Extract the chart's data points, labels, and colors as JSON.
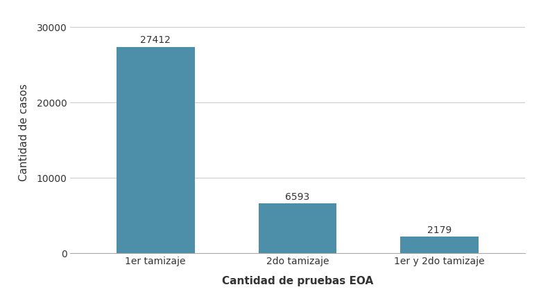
{
  "categories": [
    "1er tamizaje",
    "2do tamizaje",
    "1er y 2do tamizaje"
  ],
  "values": [
    27412,
    6593,
    2179
  ],
  "bar_color": "#4d8fa8",
  "xlabel": "Cantidad de pruebas EOA",
  "ylabel": "Cantidad de casos",
  "yticks": [
    0,
    10000,
    20000,
    30000
  ],
  "ylim": [
    0,
    32000
  ],
  "bar_width": 0.55,
  "background_color": "#ffffff",
  "grid_color": "#cccccc",
  "label_fontsize": 11,
  "tick_fontsize": 10,
  "value_fontsize": 10
}
